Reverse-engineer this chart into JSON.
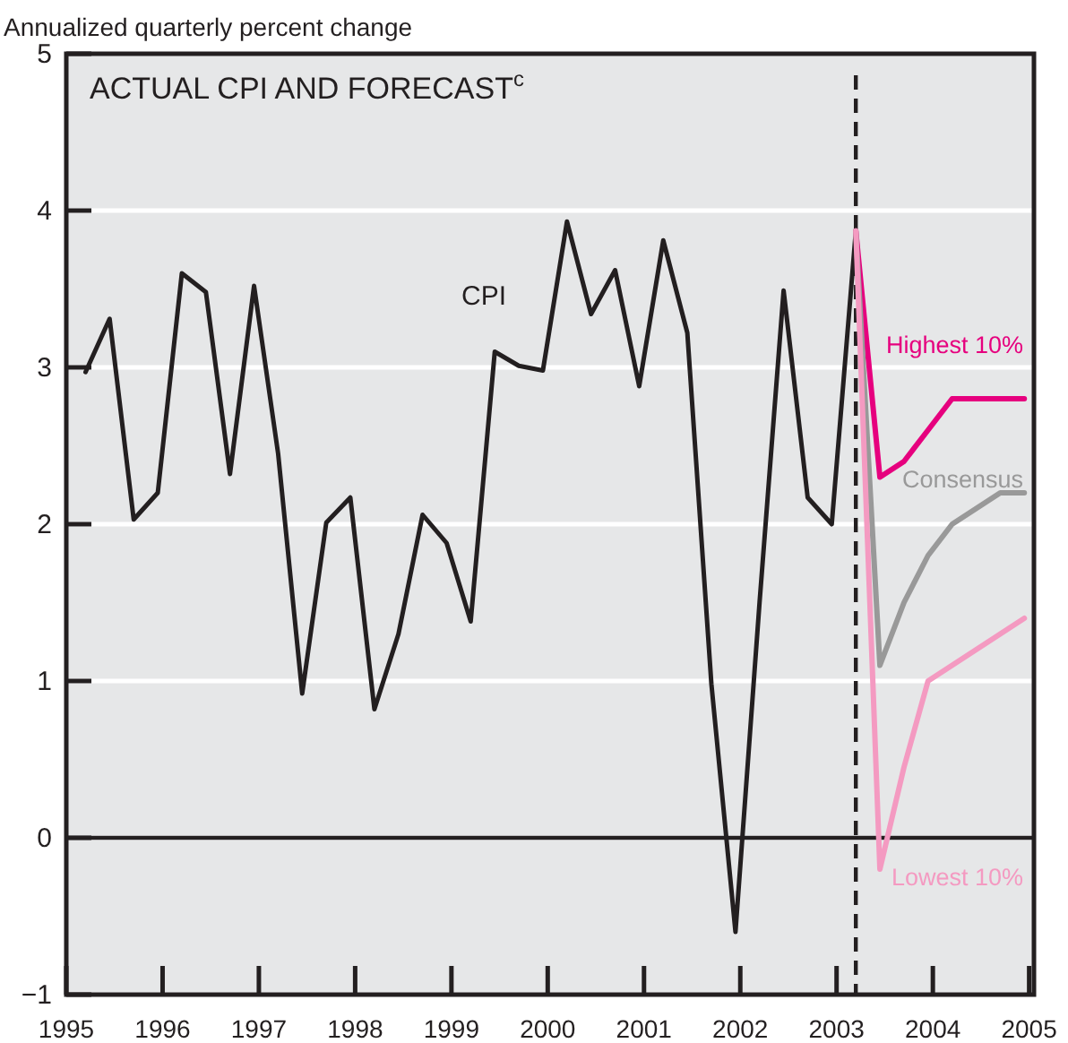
{
  "chart_data": {
    "type": "line",
    "title": "ACTUAL CPI AND FORECAST$^{c}$",
    "ylabel": "Annualized quarterly percent change",
    "xlim": [
      1995,
      2005.05
    ],
    "xticks": [
      1995,
      1996,
      1997,
      1998,
      1999,
      2000,
      2001,
      2002,
      2003,
      2004,
      2005
    ],
    "ylim": [
      -1,
      5
    ],
    "yticks": [
      -1,
      0,
      1,
      2,
      3,
      4,
      5
    ],
    "grid": "y",
    "ref_lines": [
      {
        "axis": "y",
        "value": 0,
        "color": "#231f20",
        "line_style": "solid"
      },
      {
        "axis": "x",
        "value": 2003.2,
        "color": "#231f20",
        "line_style": "dashed"
      }
    ],
    "series": [
      {
        "name": "CPI",
        "color": "#231f20",
        "x": [
          1995.2,
          1995.45,
          1995.7,
          1995.95,
          1996.2,
          1996.45,
          1996.7,
          1996.95,
          1997.2,
          1997.45,
          1997.7,
          1997.95,
          1998.2,
          1998.45,
          1998.7,
          1998.95,
          1999.2,
          1999.45,
          1999.7,
          1999.95,
          2000.2,
          2000.45,
          2000.7,
          2000.95,
          2001.2,
          2001.45,
          2001.7,
          2001.95,
          2002.2,
          2002.45,
          2002.7,
          2002.95,
          2003.2
        ],
        "values": [
          2.97,
          3.31,
          2.03,
          2.2,
          3.6,
          3.48,
          2.32,
          3.52,
          2.45,
          0.92,
          2.01,
          2.17,
          0.82,
          1.3,
          2.06,
          1.88,
          1.38,
          3.1,
          3.01,
          2.98,
          3.93,
          3.34,
          3.62,
          2.88,
          3.81,
          3.22,
          0.98,
          -0.6,
          1.5,
          3.49,
          2.17,
          2.0,
          3.87
        ]
      },
      {
        "name": "Highest 10%",
        "color": "#e6007e",
        "x": [
          2003.2,
          2003.45,
          2003.7,
          2003.95,
          2004.2,
          2004.45,
          2004.7,
          2004.95
        ],
        "values": [
          3.87,
          2.3,
          2.4,
          2.6,
          2.8,
          2.8,
          2.8,
          2.8
        ]
      },
      {
        "name": "Consensus",
        "color": "#999999",
        "x": [
          2003.2,
          2003.45,
          2003.7,
          2003.95,
          2004.2,
          2004.45,
          2004.7,
          2004.95
        ],
        "values": [
          3.87,
          1.1,
          1.5,
          1.8,
          2.0,
          2.1,
          2.2,
          2.2
        ]
      },
      {
        "name": "Lowest 10%",
        "color": "#f49ac1",
        "x": [
          2003.2,
          2003.45,
          2003.7,
          2003.95,
          2004.2,
          2004.45,
          2004.7,
          2004.95
        ],
        "values": [
          3.87,
          -0.2,
          0.45,
          1.0,
          1.1,
          1.2,
          1.3,
          1.4
        ]
      }
    ],
    "marker": "none",
    "line_style": "solid"
  }
}
